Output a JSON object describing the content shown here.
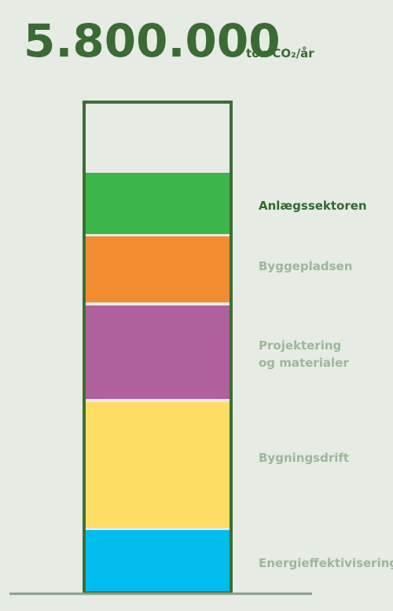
{
  "header": {
    "total": "5.800.000",
    "unit": "ton CO₂/år"
  },
  "segments": [
    {
      "label": [
        "Anlægssektoren"
      ]
    },
    {
      "label": [
        "Byggepladsen"
      ]
    },
    {
      "label": [
        "Projektering",
        "og materialer"
      ]
    },
    {
      "label": [
        "Bygningsdrift"
      ]
    },
    {
      "label": [
        "Energieffektivisering"
      ]
    }
  ]
}
